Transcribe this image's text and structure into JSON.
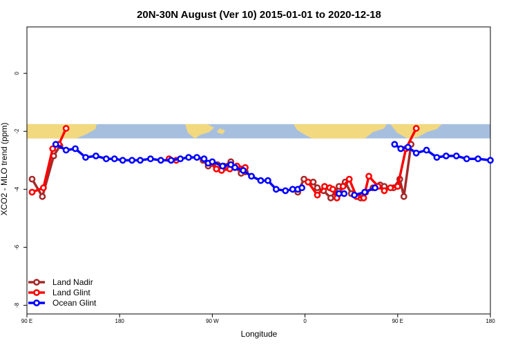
{
  "chart_data": {
    "type": "line",
    "title": "20N-30N August (Ver 10)   2015-01-01 to 2020-12-18",
    "xlabel": "Longitude",
    "ylabel": "XCO2 - MLO trend (ppm)",
    "xlim": [
      90,
      450
    ],
    "ylim": [
      -8.3,
      1.6
    ],
    "x_ticks": [
      {
        "value": 90,
        "label": "90 E"
      },
      {
        "value": 180,
        "label": "180"
      },
      {
        "value": 270,
        "label": "90 W"
      },
      {
        "value": 360,
        "label": "0"
      },
      {
        "value": 450,
        "label": "90 E"
      },
      {
        "value": 540,
        "label": "180"
      }
    ],
    "y_ticks": [
      {
        "value": 0,
        "label": "0"
      },
      {
        "value": -2,
        "label": "-2"
      },
      {
        "value": -4,
        "label": "-4"
      },
      {
        "value": -6,
        "label": "-6"
      },
      {
        "value": -8,
        "label": "-8"
      }
    ],
    "x_axis_span": [
      90,
      540
    ],
    "map_band": {
      "y_top": -1.75,
      "y_bottom": -2.25,
      "ocean_color": "#a7bfdf",
      "land_color": "#f2d97f"
    },
    "legend_position": "bottom-left",
    "grid": false,
    "series": [
      {
        "name": "Land Nadir",
        "color": "#a52a2a",
        "segments": [
          {
            "x": [
              95,
              105,
              116,
              122
            ],
            "y": [
              -3.65,
              -4.25,
              -2.85,
              -2.5
            ]
          },
          {
            "x": [
              261,
              266,
              275,
              281,
              288,
              298,
              302
            ],
            "y": [
              -3.0,
              -3.2,
              -3.15,
              -3.2,
              -3.05,
              -3.45,
              -3.4
            ]
          },
          {
            "x": [
              353,
              359,
              368,
              372,
              378,
              385,
              393,
              399,
              405,
              414,
              419,
              426,
              433,
              437,
              446,
              452,
              456,
              463
            ],
            "y": [
              -4.1,
              -3.65,
              -3.75,
              -3.95,
              -4.05,
              -4.3,
              -3.9,
              -3.75,
              -4.15,
              -4.3,
              -4.1,
              -3.95,
              -3.85,
              -3.9,
              -3.95,
              -3.65,
              -4.25,
              -2.45
            ]
          }
        ]
      },
      {
        "name": "Land Glint",
        "color": "#ff0000",
        "segments": [
          {
            "x": [
              95,
              106,
              115,
              121,
              128
            ],
            "y": [
              -4.1,
              -3.95,
              -2.6,
              -2.45,
              -1.9
            ]
          },
          {
            "x": [
              228,
              235
            ],
            "y": [
              -2.95,
              -3.0
            ]
          },
          {
            "x": [
              268,
              274,
              279,
              287,
              294,
              302
            ],
            "y": [
              -3.1,
              -3.3,
              -3.35,
              -3.3,
              -3.2,
              -3.25
            ]
          },
          {
            "x": [
              363,
              372,
              379,
              384,
              387,
              391,
              397,
              403,
              410,
              417,
              422,
              431,
              437,
              443,
              450,
              458,
              468
            ],
            "y": [
              -3.75,
              -4.2,
              -3.9,
              -3.95,
              -4.0,
              -4.3,
              -3.9,
              -3.65,
              -4.25,
              -4.3,
              -3.55,
              -3.9,
              -4.05,
              -3.95,
              -3.9,
              -2.6,
              -1.9
            ]
          }
        ]
      },
      {
        "name": "Ocean Glint",
        "color": "#0000ff",
        "segments": [
          {
            "x": [
              118,
              128,
              137,
              147,
              157,
              167,
              175,
              183,
              192,
              200,
              210,
              220,
              230,
              239,
              247,
              255,
              262,
              266,
              270,
              280,
              288,
              292,
              300,
              308,
              317,
              324,
              332,
              341,
              348,
              353,
              357
            ],
            "y": [
              -2.45,
              -2.65,
              -2.6,
              -2.9,
              -2.85,
              -2.95,
              -2.95,
              -3.0,
              -3.0,
              -3.0,
              -2.95,
              -3.0,
              -3.0,
              -2.95,
              -2.9,
              -2.9,
              -2.95,
              -3.1,
              -3.05,
              -3.2,
              -3.15,
              -3.25,
              -3.35,
              -3.55,
              -3.7,
              -3.7,
              -4.0,
              -4.05,
              -4.0,
              -4.0,
              -3.95
            ]
          },
          {
            "x": [
              393,
              398
            ],
            "y": [
              -4.15,
              -4.15
            ]
          },
          {
            "x": [
              408,
              418,
              428
            ],
            "y": [
              -4.2,
              -4.1,
              -3.95
            ]
          },
          {
            "x": [
              447,
              453,
              460,
              468,
              478,
              488,
              497,
              507,
              517,
              528,
              540
            ],
            "y": [
              -2.45,
              -2.6,
              -2.55,
              -2.75,
              -2.65,
              -2.9,
              -2.85,
              -2.85,
              -2.95,
              -2.95,
              -3.0
            ]
          }
        ]
      }
    ]
  }
}
